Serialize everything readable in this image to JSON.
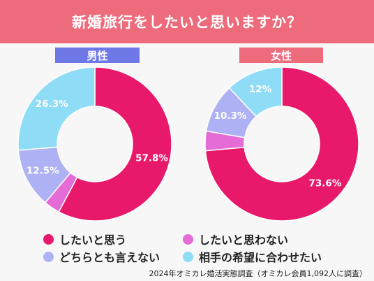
{
  "title": "新婚旅行をしたいと思いますか？",
  "legend": [
    {
      "label": "したいと思う",
      "color": "#e8196a"
    },
    {
      "label": "したいと思わない",
      "color": "#e56bd6"
    },
    {
      "label": "どちらとも言えない",
      "color": "#aeb2f4"
    },
    {
      "label": "相手の希望に合わせたい",
      "color": "#8fdcf7"
    }
  ],
  "source": "2024年オミカレ婚活実態調査（オミカレ会員1,092人に調査）",
  "chart_data": [
    {
      "type": "pie",
      "title": "男性",
      "categories": [
        "したいと思う",
        "したいと思わない",
        "どちらとも言えない",
        "相手の希望に合わせたい"
      ],
      "values": [
        57.8,
        3.4,
        12.5,
        26.3
      ],
      "labels": [
        "57.8%",
        "",
        "12.5%",
        "26.3%"
      ],
      "colors": [
        "#e8196a",
        "#e56bd6",
        "#aeb2f4",
        "#8fdcf7"
      ]
    },
    {
      "type": "pie",
      "title": "女性",
      "categories": [
        "したいと思う",
        "したいと思わない",
        "どちらとも言えない",
        "相手の希望に合わせたい"
      ],
      "values": [
        73.6,
        4.1,
        10.3,
        12
      ],
      "labels": [
        "73.6%",
        "",
        "10.3%",
        "12%"
      ],
      "colors": [
        "#e8196a",
        "#e56bd6",
        "#aeb2f4",
        "#8fdcf7"
      ]
    }
  ]
}
